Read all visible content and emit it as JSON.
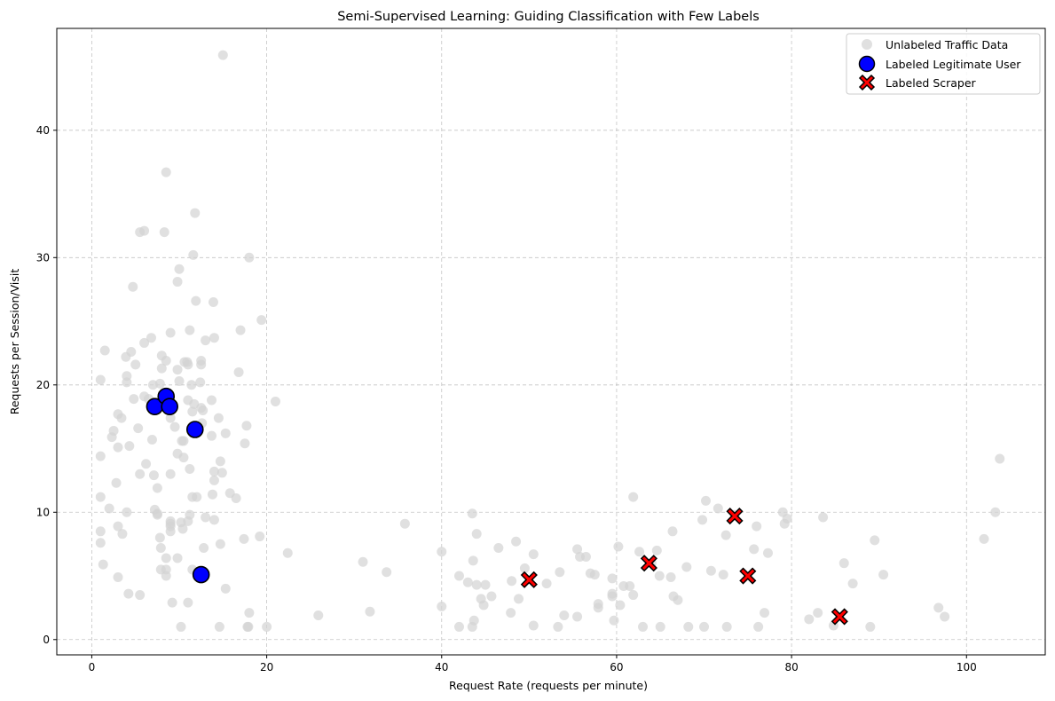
{
  "chart_data": {
    "type": "scatter",
    "title": "Semi-Supervised Learning: Guiding Classification with Few Labels",
    "xlabel": "Request Rate (requests per minute)",
    "ylabel": "Requests per Session/Visit",
    "xlim": [
      -4,
      109
    ],
    "ylim": [
      -1.2,
      48
    ],
    "xticks": [
      0,
      20,
      40,
      60,
      80,
      100
    ],
    "yticks": [
      0,
      10,
      20,
      30,
      40
    ],
    "grid": true,
    "legend_position": "top-right",
    "series": [
      {
        "name": "Unlabeled Traffic Data",
        "marker": "circle",
        "color": "#d3d3d3",
        "points": [
          [
            1,
            14.4
          ],
          [
            1,
            11.2
          ],
          [
            1,
            8.5
          ],
          [
            1,
            7.6
          ],
          [
            1.3,
            5.9
          ],
          [
            1,
            20.4
          ],
          [
            1.5,
            22.7
          ],
          [
            2,
            10.3
          ],
          [
            2.3,
            15.9
          ],
          [
            2.5,
            16.4
          ],
          [
            2.8,
            12.3
          ],
          [
            3,
            17.7
          ],
          [
            3,
            15.1
          ],
          [
            3,
            8.9
          ],
          [
            3,
            4.9
          ],
          [
            3.4,
            17.4
          ],
          [
            3.5,
            8.3
          ],
          [
            3.9,
            22.2
          ],
          [
            4,
            20.7
          ],
          [
            4,
            20.2
          ],
          [
            4,
            10
          ],
          [
            4.2,
            3.6
          ],
          [
            4.3,
            15.2
          ],
          [
            4.5,
            22.6
          ],
          [
            4.7,
            27.7
          ],
          [
            4.8,
            18.9
          ],
          [
            5,
            21.6
          ],
          [
            5.3,
            16.6
          ],
          [
            5.5,
            32
          ],
          [
            5.5,
            13
          ],
          [
            5.5,
            3.5
          ],
          [
            6,
            32.1
          ],
          [
            6,
            23.3
          ],
          [
            6,
            19.1
          ],
          [
            6.2,
            13.8
          ],
          [
            6.5,
            18.9
          ],
          [
            6.8,
            23.7
          ],
          [
            6.9,
            15.7
          ],
          [
            7,
            20
          ],
          [
            7.1,
            12.9
          ],
          [
            7.2,
            10.2
          ],
          [
            7.5,
            9.9
          ],
          [
            7.5,
            9.8
          ],
          [
            7.5,
            11.9
          ],
          [
            7.8,
            20.1
          ],
          [
            7.8,
            8
          ],
          [
            7.9,
            5.5
          ],
          [
            7.9,
            7.2
          ],
          [
            8,
            22.3
          ],
          [
            8,
            21.3
          ],
          [
            8.3,
            32
          ],
          [
            8.5,
            36.7
          ],
          [
            8.5,
            21.9
          ],
          [
            8.5,
            19.1
          ],
          [
            8.5,
            6.4
          ],
          [
            8.5,
            5
          ],
          [
            8.5,
            5.5
          ],
          [
            9,
            24.1
          ],
          [
            9,
            17.4
          ],
          [
            9,
            8.9
          ],
          [
            9,
            9.3
          ],
          [
            9,
            13
          ],
          [
            9,
            9.1
          ],
          [
            9,
            8.5
          ],
          [
            9.2,
            2.9
          ],
          [
            9.5,
            16.7
          ],
          [
            9.8,
            21.2
          ],
          [
            9.8,
            14.6
          ],
          [
            9.8,
            6.4
          ],
          [
            9.8,
            28.1
          ],
          [
            10,
            29.1
          ],
          [
            10,
            20.3
          ],
          [
            10.2,
            9.2
          ],
          [
            10.2,
            1
          ],
          [
            10.3,
            15.6
          ],
          [
            10.4,
            8.7
          ],
          [
            10.5,
            14.3
          ],
          [
            10.5,
            15.6
          ],
          [
            10.6,
            21.8
          ],
          [
            10.9,
            21.8
          ],
          [
            11,
            21.6
          ],
          [
            11,
            18.8
          ],
          [
            11,
            2.9
          ],
          [
            11,
            9.3
          ],
          [
            11.2,
            24.3
          ],
          [
            11.2,
            13.4
          ],
          [
            11.2,
            9.8
          ],
          [
            11.4,
            20
          ],
          [
            11.5,
            17.9
          ],
          [
            11.5,
            11.2
          ],
          [
            11.5,
            5.5
          ],
          [
            11.6,
            30.2
          ],
          [
            11.7,
            18.5
          ],
          [
            11.8,
            33.5
          ],
          [
            11.9,
            26.6
          ],
          [
            12,
            11.2
          ],
          [
            12.1,
            5.3
          ],
          [
            12.4,
            20.2
          ],
          [
            12.5,
            21.6
          ],
          [
            12.5,
            21.9
          ],
          [
            12.5,
            18.2
          ],
          [
            12.6,
            17
          ],
          [
            12.7,
            18
          ],
          [
            12.8,
            7.2
          ],
          [
            13,
            23.5
          ],
          [
            13,
            9.6
          ],
          [
            13.7,
            18.8
          ],
          [
            13.7,
            16
          ],
          [
            13.8,
            11.4
          ],
          [
            13.9,
            26.5
          ],
          [
            14,
            23.7
          ],
          [
            14,
            9.4
          ],
          [
            14,
            13.2
          ],
          [
            14,
            12.5
          ],
          [
            14.5,
            17.4
          ],
          [
            14.6,
            1
          ],
          [
            14.7,
            14
          ],
          [
            14.7,
            7.5
          ],
          [
            14.9,
            13.1
          ],
          [
            15,
            45.9
          ],
          [
            15.3,
            16.2
          ],
          [
            15.3,
            4
          ],
          [
            15.8,
            11.5
          ],
          [
            16.5,
            11.1
          ],
          [
            16.8,
            21
          ],
          [
            17,
            24.3
          ],
          [
            17.4,
            7.9
          ],
          [
            17.5,
            15.4
          ],
          [
            17.7,
            16.8
          ],
          [
            17.8,
            1
          ],
          [
            17.9,
            1
          ],
          [
            18,
            2.1
          ],
          [
            18,
            30
          ],
          [
            19.2,
            8.1
          ],
          [
            19.4,
            25.1
          ],
          [
            20,
            1
          ],
          [
            21,
            18.7
          ],
          [
            22.4,
            6.8
          ],
          [
            25.9,
            1.9
          ],
          [
            31,
            6.1
          ],
          [
            31.8,
            2.2
          ],
          [
            33.7,
            5.3
          ],
          [
            35.8,
            9.1
          ],
          [
            40,
            6.9
          ],
          [
            40,
            2.6
          ],
          [
            42,
            5
          ],
          [
            42,
            1
          ],
          [
            43,
            4.5
          ],
          [
            43.5,
            9.9
          ],
          [
            43.5,
            1
          ],
          [
            43.6,
            6.2
          ],
          [
            43.7,
            1.5
          ],
          [
            44,
            8.3
          ],
          [
            44,
            4.3
          ],
          [
            44.5,
            3.2
          ],
          [
            44.8,
            2.7
          ],
          [
            45,
            4.3
          ],
          [
            45.7,
            3.4
          ],
          [
            46.5,
            7.2
          ],
          [
            47.9,
            2.1
          ],
          [
            48,
            4.6
          ],
          [
            48.5,
            7.7
          ],
          [
            48.8,
            3.2
          ],
          [
            49.5,
            5.6
          ],
          [
            50.5,
            1.1
          ],
          [
            50.5,
            6.7
          ],
          [
            52,
            4.4
          ],
          [
            53.3,
            1
          ],
          [
            53.5,
            5.3
          ],
          [
            54,
            1.9
          ],
          [
            55.5,
            7.1
          ],
          [
            55.5,
            1.8
          ],
          [
            55.8,
            6.5
          ],
          [
            56.5,
            6.5
          ],
          [
            57,
            5.2
          ],
          [
            57.5,
            5.1
          ],
          [
            57.9,
            2.8
          ],
          [
            57.9,
            2.5
          ],
          [
            59.5,
            3.4
          ],
          [
            59.5,
            3.6
          ],
          [
            59.5,
            4.8
          ],
          [
            59.7,
            1.5
          ],
          [
            60.2,
            7.3
          ],
          [
            60.4,
            2.7
          ],
          [
            60.8,
            4.2
          ],
          [
            61.5,
            4.2
          ],
          [
            61.9,
            11.2
          ],
          [
            61.9,
            3.5
          ],
          [
            62.6,
            6.9
          ],
          [
            63,
            1
          ],
          [
            64,
            6
          ],
          [
            64.6,
            7
          ],
          [
            64.9,
            5
          ],
          [
            65,
            1
          ],
          [
            66.2,
            4.9
          ],
          [
            66.4,
            8.5
          ],
          [
            66.5,
            3.4
          ],
          [
            67,
            3.1
          ],
          [
            68,
            5.7
          ],
          [
            68.2,
            1
          ],
          [
            69.8,
            9.4
          ],
          [
            70,
            1
          ],
          [
            70.2,
            10.9
          ],
          [
            70.8,
            5.4
          ],
          [
            71.6,
            10.3
          ],
          [
            72.2,
            5.1
          ],
          [
            72.5,
            8.2
          ],
          [
            72.6,
            1
          ],
          [
            73.5,
            9.8
          ],
          [
            75.7,
            7.1
          ],
          [
            76,
            8.9
          ],
          [
            76.2,
            1
          ],
          [
            76.9,
            2.1
          ],
          [
            77.3,
            6.8
          ],
          [
            79,
            10
          ],
          [
            79.2,
            9.1
          ],
          [
            79.5,
            9.5
          ],
          [
            82,
            1.6
          ],
          [
            83,
            2.1
          ],
          [
            83.6,
            9.6
          ],
          [
            84.8,
            1.1
          ],
          [
            86,
            6
          ],
          [
            87,
            4.4
          ],
          [
            89,
            1
          ],
          [
            89.5,
            7.8
          ],
          [
            90.5,
            5.1
          ],
          [
            96.8,
            2.5
          ],
          [
            97.5,
            1.8
          ],
          [
            102,
            7.9
          ],
          [
            103.3,
            10
          ],
          [
            103.8,
            14.2
          ]
        ]
      },
      {
        "name": "Labeled Legitimate User",
        "marker": "circle",
        "color": "#0000ff",
        "points": [
          [
            7.2,
            18.3
          ],
          [
            8.5,
            19.1
          ],
          [
            8.9,
            18.3
          ],
          [
            11.8,
            16.5
          ],
          [
            12.5,
            5.1
          ]
        ]
      },
      {
        "name": "Labeled Scraper",
        "marker": "x",
        "color": "#ff0000",
        "points": [
          [
            50,
            4.7
          ],
          [
            63.7,
            6
          ],
          [
            73.5,
            9.7
          ],
          [
            75,
            5
          ],
          [
            85.5,
            1.8
          ]
        ]
      }
    ]
  }
}
